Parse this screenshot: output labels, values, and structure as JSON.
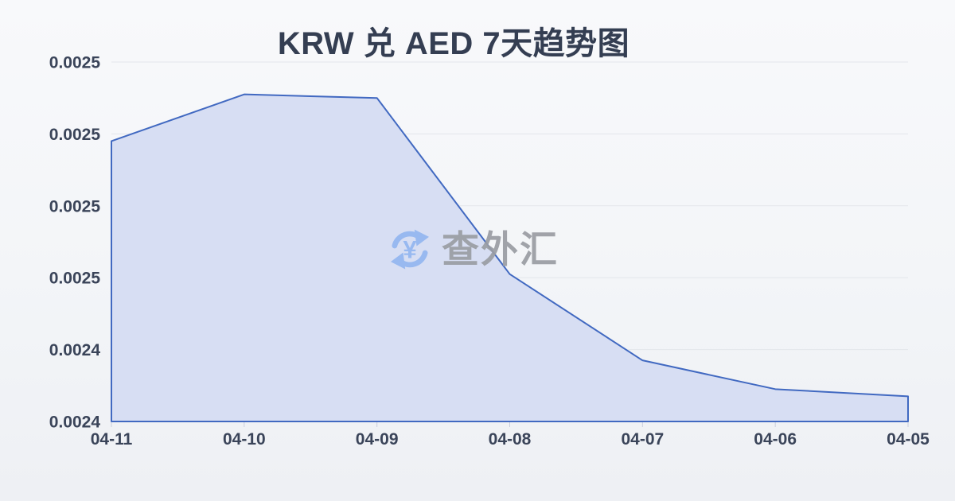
{
  "title": "KRW 兑 AED 7天趋势图",
  "watermark": {
    "icon": "currency-exchange-icon",
    "icon_symbol": "¥",
    "text": "查外汇"
  },
  "chart_data": {
    "type": "area",
    "title": "KRW 兑 AED 7天趋势图",
    "x": [
      "04-11",
      "04-10",
      "04-09",
      "04-08",
      "04-07",
      "04-06",
      "04-05"
    ],
    "values": [
      0.002498,
      0.002511,
      0.00251,
      0.002461,
      0.002437,
      0.002429,
      0.002427
    ],
    "series_name": "KRW/AED",
    "xlabel": "",
    "ylabel": "",
    "ylim": [
      0.00242,
      0.00252
    ],
    "y_ticks": [
      0.00252,
      0.0025,
      0.00248,
      0.00246,
      0.00244,
      0.00242
    ],
    "y_tick_labels": [
      "0.0025",
      "0.0025",
      "0.0025",
      "0.0025",
      "0.0024",
      "0.0024"
    ],
    "grid": true,
    "legend": false
  },
  "colors": {
    "line": "#4169c1",
    "fill": "#d7def3",
    "grid": "#e3e6eb",
    "tick": "#c9cede",
    "axis_text": "#3a4459",
    "title_text": "#343e52",
    "watermark_icon": "#93b6f0",
    "watermark_text": "#9a9da3",
    "background_top": "#f8f9fb",
    "background_bottom": "#eef0f4"
  }
}
